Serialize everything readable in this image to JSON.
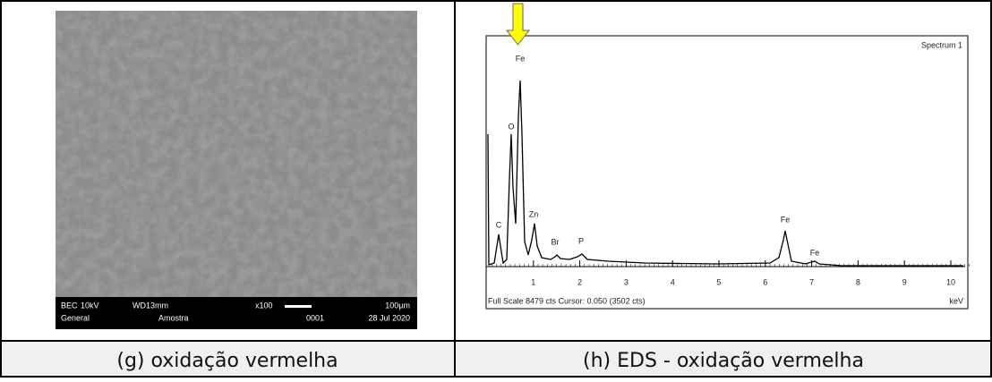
{
  "sem": {
    "info": [
      "BEC",
      "10kV",
      "WD13mm",
      "x100",
      "100µm",
      "General",
      "Amostra",
      "0001",
      "28 Jul 2020"
    ]
  },
  "eds": {
    "title": "Spectrum 1",
    "peaks": [
      "Fe",
      "O",
      "C",
      "Zn",
      "Br",
      "P",
      "Fe",
      "Fe"
    ],
    "xticks": [
      1,
      2,
      3,
      4,
      5,
      6,
      7,
      8,
      9,
      10
    ],
    "footer": "Full Scale 8479 cts Cursor: 0.050  (3502 cts)",
    "unit": "keV"
  },
  "captions": [
    "(g) oxidação vermelha",
    "(h) EDS - oxidação vermelha"
  ]
}
